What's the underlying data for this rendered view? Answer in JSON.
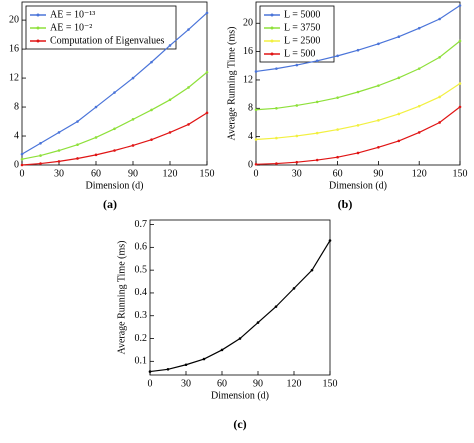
{
  "chart_data": [
    {
      "type": "line",
      "panel_label": "(a)",
      "xlabel": "Dimension (d)",
      "x": [
        0,
        15,
        30,
        45,
        60,
        75,
        90,
        105,
        120,
        135,
        150
      ],
      "xlim": [
        0,
        150
      ],
      "xticks": [
        0,
        30,
        60,
        90,
        120,
        150
      ],
      "ylim": [
        0,
        22.5
      ],
      "yticks": [
        0,
        4,
        8,
        12,
        16,
        20
      ],
      "series": [
        {
          "name": "AE = 10⁻¹³",
          "color": "#4a74d9",
          "values": [
            1.5,
            3,
            4.5,
            6,
            8,
            10,
            12,
            14.2,
            16.5,
            18.7,
            21
          ]
        },
        {
          "name": "AE = 10⁻²",
          "color": "#8ee03a",
          "values": [
            0.8,
            1.3,
            2,
            2.8,
            3.8,
            5,
            6.3,
            7.6,
            9,
            10.7,
            12.8
          ]
        },
        {
          "name": "Computation of Eigenvalues",
          "color": "#e01414",
          "values": [
            0,
            0.2,
            0.5,
            0.9,
            1.4,
            2,
            2.7,
            3.5,
            4.5,
            5.6,
            7.2
          ]
        }
      ]
    },
    {
      "type": "line",
      "panel_label": "(b)",
      "xlabel": "Dimension (d)",
      "ylabel": "Average Running Time (ms)",
      "x": [
        0,
        15,
        30,
        45,
        60,
        75,
        90,
        105,
        120,
        135,
        150
      ],
      "xlim": [
        0,
        150
      ],
      "xticks": [
        0,
        30,
        60,
        90,
        120,
        150
      ],
      "ylim": [
        0,
        23
      ],
      "yticks": [
        0,
        4,
        8,
        12,
        16,
        20
      ],
      "series": [
        {
          "name": "L = 5000",
          "color": "#4a74d9",
          "values": [
            13.2,
            13.6,
            14.1,
            14.7,
            15.4,
            16.2,
            17.1,
            18.1,
            19.3,
            20.6,
            22.5
          ]
        },
        {
          "name": "L = 3750",
          "color": "#8ee03a",
          "values": [
            7.8,
            8,
            8.4,
            8.9,
            9.5,
            10.3,
            11.2,
            12.3,
            13.6,
            15.2,
            17.5
          ]
        },
        {
          "name": "L = 2500",
          "color": "#f2f040",
          "values": [
            3.6,
            3.8,
            4.1,
            4.5,
            5,
            5.6,
            6.3,
            7.2,
            8.3,
            9.6,
            11.5
          ]
        },
        {
          "name": "L = 500",
          "color": "#e01414",
          "values": [
            0.1,
            0.2,
            0.4,
            0.7,
            1.1,
            1.7,
            2.5,
            3.4,
            4.6,
            6,
            8.2
          ]
        }
      ]
    },
    {
      "type": "line",
      "panel_label": "(c)",
      "xlabel": "Dimension (d)",
      "ylabel": "Average Running Time (ms)",
      "x": [
        0,
        15,
        30,
        45,
        60,
        75,
        90,
        105,
        120,
        135,
        150
      ],
      "xlim": [
        0,
        150
      ],
      "xticks": [
        0,
        30,
        60,
        90,
        120,
        150
      ],
      "ylim": [
        0.04,
        0.72
      ],
      "yticks": [
        0.1,
        0.2,
        0.3,
        0.4,
        0.5,
        0.6,
        0.7
      ],
      "series": [
        {
          "color": "#000000",
          "values": [
            0.055,
            0.065,
            0.085,
            0.11,
            0.15,
            0.2,
            0.27,
            0.34,
            0.42,
            0.5,
            0.63
          ]
        }
      ]
    }
  ]
}
